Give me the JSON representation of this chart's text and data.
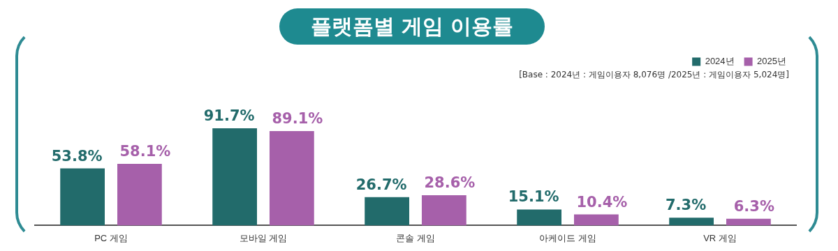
{
  "chart_data": {
    "type": "bar",
    "title": "플랫폼별 게임 이용률",
    "categories": [
      "PC 게임",
      "모바일 게임",
      "콘솔 게임",
      "아케이드 게임",
      "VR 게임"
    ],
    "series": [
      {
        "name": "2024년",
        "color": "#226b6b",
        "values": [
          53.8,
          91.7,
          26.7,
          15.1,
          7.3
        ],
        "value_labels": [
          "53.8%",
          "91.7%",
          "26.7%",
          "15.1%",
          "7.3%"
        ]
      },
      {
        "name": "2025년",
        "color": "#a660aa",
        "values": [
          58.1,
          89.1,
          28.6,
          10.4,
          6.3
        ],
        "value_labels": [
          "58.1%",
          "89.1%",
          "28.6%",
          "10.4%",
          "6.3%"
        ]
      }
    ],
    "annotations": [
      "[Base : 2024년 : 게임이용자 8,076명 /2025년 : 게임이용자 5,024명]"
    ],
    "legend": "top right",
    "grid": false
  }
}
